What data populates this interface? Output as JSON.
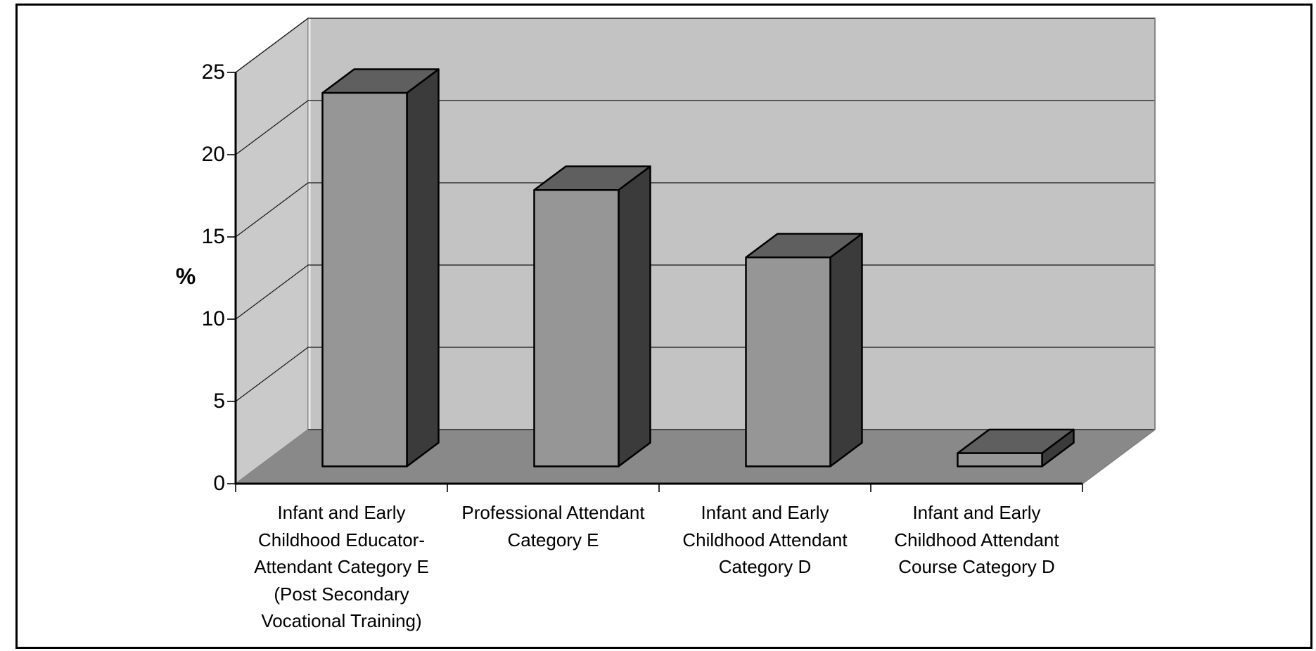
{
  "chart_data": {
    "type": "bar",
    "style": "3d-column-single-series",
    "title": "",
    "ylabel": "%",
    "xlabel": "",
    "ylim": [
      0,
      25
    ],
    "ytick_interval": 5,
    "yticks": [
      0,
      5,
      10,
      15,
      20,
      25
    ],
    "grid": true,
    "legend": false,
    "categories": [
      {
        "label": "Infant and Early Childhood Educator-Attendant Category E (Post Secondary Vocational Training)",
        "lines": [
          "Infant and Early",
          "Childhood Educator-",
          "Attendant Category E",
          "(Post Secondary",
          "Vocational Training)"
        ]
      },
      {
        "label": "Professional Attendant Category E",
        "lines": [
          "Professional Attendant",
          "Category E"
        ]
      },
      {
        "label": "Infant and Early Childhood Attendant Category D",
        "lines": [
          "Infant and Early",
          "Childhood Attendant",
          "Category D"
        ]
      },
      {
        "label": "Infant and Early Childhood Attendant Course Category D",
        "lines": [
          "Infant and Early",
          "Childhood Attendant",
          "Course Category D"
        ]
      }
    ],
    "values": [
      22.7,
      16.8,
      12.7,
      0.8
    ]
  },
  "colors": {
    "background": "#ffffff",
    "frame": "#000000",
    "wall_left": "#cacaca",
    "wall_back": "#c3c3c3",
    "wall_corner_highlight": "#eaeaea",
    "floor": "#898989",
    "bar_front": "#969696",
    "bar_top": "#5f5f5f",
    "bar_side": "#3b3b3b",
    "outline": "#000000",
    "edge": "#828282",
    "gridline": "#161616",
    "text": "#000000"
  }
}
